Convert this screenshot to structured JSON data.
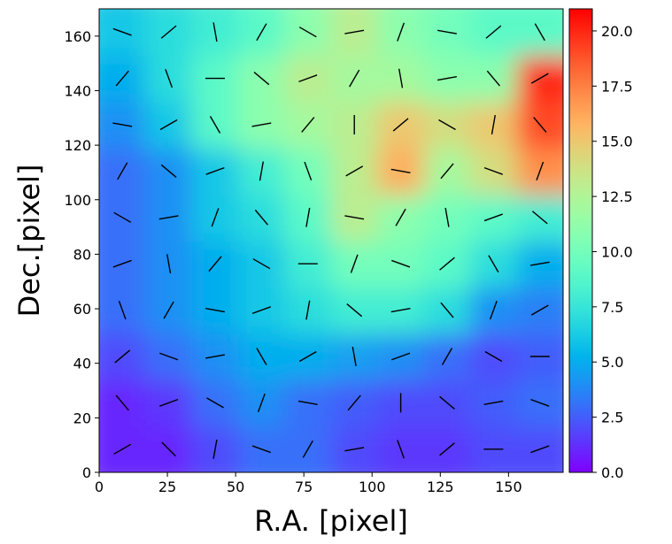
{
  "chart_data": {
    "type": "heatmap",
    "xlabel": "R.A. [pixel]",
    "ylabel": "Dec.[pixel]",
    "xlim": [
      0,
      170
    ],
    "ylim": [
      0,
      170
    ],
    "xticks": [
      0,
      25,
      50,
      75,
      100,
      125,
      150
    ],
    "yticks": [
      0,
      20,
      40,
      60,
      80,
      100,
      120,
      140,
      160
    ],
    "colormap": "rainbow",
    "z": [
      [
        1,
        1,
        2,
        3,
        3,
        2,
        1.5,
        1.5,
        2,
        2
      ],
      [
        1,
        1.5,
        3,
        4,
        3,
        2.5,
        2,
        2,
        2.5,
        3
      ],
      [
        2,
        3,
        4,
        5,
        5,
        4.5,
        4,
        3,
        2,
        2.5
      ],
      [
        3,
        4,
        5,
        6,
        7,
        8,
        8,
        7,
        4,
        3.5
      ],
      [
        3,
        4,
        5,
        6,
        8,
        10,
        10,
        9,
        7,
        5
      ],
      [
        3,
        4,
        6,
        7,
        9,
        13,
        11,
        10,
        9,
        8
      ],
      [
        3,
        4,
        6,
        8,
        10,
        13,
        16,
        12,
        14,
        17
      ],
      [
        4,
        6,
        9,
        11,
        12,
        13,
        15,
        14,
        15,
        19
      ],
      [
        5,
        7,
        9,
        11,
        13,
        12,
        12,
        11,
        11,
        20
      ],
      [
        6,
        7,
        8,
        9,
        11,
        13,
        11,
        10,
        9,
        9
      ]
    ],
    "vector_angles": [
      [
        30,
        -45,
        80,
        -20,
        60,
        10,
        -70,
        40,
        0,
        20
      ],
      [
        -50,
        20,
        -30,
        70,
        -10,
        50,
        90,
        -40,
        10,
        -20
      ],
      [
        40,
        -20,
        10,
        -60,
        30,
        -80,
        20,
        60,
        -30,
        0
      ],
      [
        -70,
        60,
        -10,
        20,
        80,
        -40,
        10,
        -50,
        70,
        30
      ],
      [
        20,
        -80,
        50,
        -30,
        0,
        70,
        -20,
        40,
        -60,
        10
      ],
      [
        -30,
        10,
        70,
        -50,
        80,
        -10,
        60,
        -80,
        20,
        -40
      ],
      [
        60,
        -40,
        20,
        80,
        -70,
        30,
        -10,
        50,
        -20,
        70
      ],
      [
        -10,
        30,
        -60,
        10,
        50,
        -90,
        40,
        -30,
        80,
        -50
      ],
      [
        50,
        -70,
        0,
        -40,
        20,
        60,
        -80,
        10,
        -50,
        30
      ],
      [
        -20,
        40,
        -80,
        60,
        -30,
        10,
        70,
        -10,
        40,
        -60
      ]
    ],
    "colorbar": {
      "lim": [
        0,
        21
      ],
      "ticks": [
        {
          "value": 0,
          "label": "0.0"
        },
        {
          "value": 2.5,
          "label": "2.5"
        },
        {
          "value": 5,
          "label": "5.0"
        },
        {
          "value": 7.5,
          "label": "7.5"
        },
        {
          "value": 10,
          "label": "10.0"
        },
        {
          "value": 12.5,
          "label": "12.5"
        },
        {
          "value": 15,
          "label": "15.0"
        },
        {
          "value": 17.5,
          "label": "17.5"
        },
        {
          "value": 20,
          "label": "20.0"
        }
      ]
    }
  }
}
